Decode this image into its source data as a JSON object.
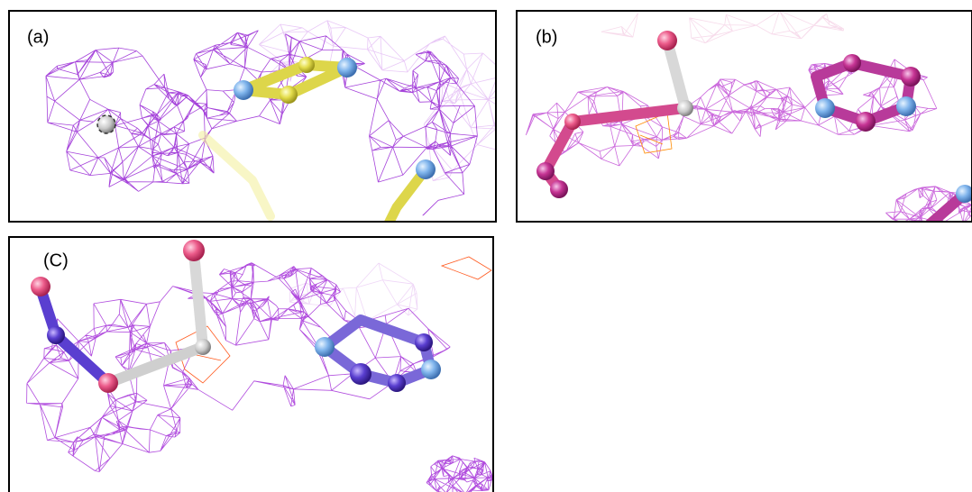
{
  "panels": [
    {
      "label": "(a)"
    },
    {
      "label": "(b)"
    },
    {
      "label": "(C)"
    }
  ]
}
